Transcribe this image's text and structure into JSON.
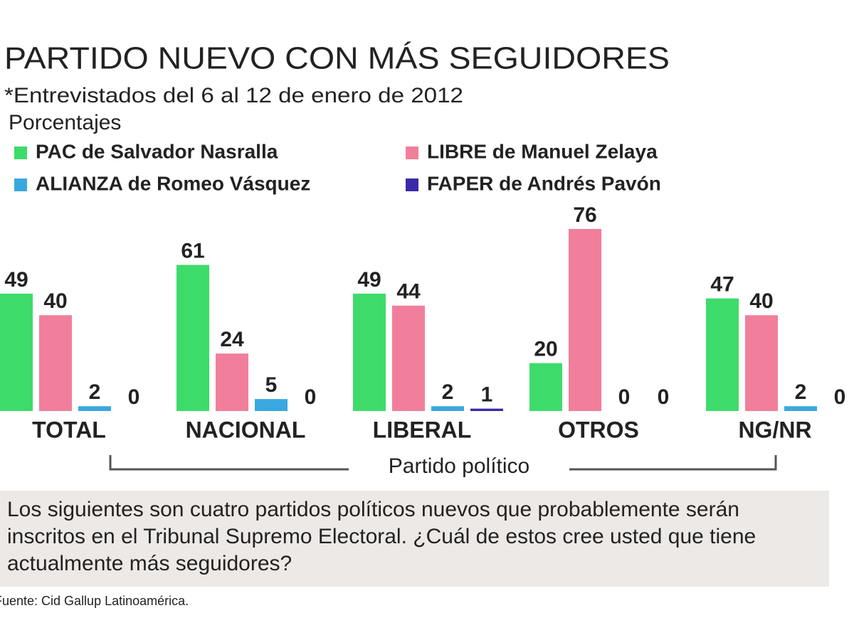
{
  "chart_data": {
    "type": "bar",
    "title": "PARTIDO NUEVO CON MÁS SEGUIDORES",
    "subtitle": "*Entrevistados del 6 al 12 de enero de 2012",
    "units": "Porcentajes",
    "x_label": "Partido político",
    "note": "Los siguientes son cuatro partidos políticos nuevos que probablemente serán inscritos en el Tribunal Supremo Electoral. ¿Cuál de estos cree usted que tiene actualmente más seguidores?",
    "source": "Fuente: Cid Gallup Latinoamérica.",
    "categories": [
      "TOTAL",
      "NACIONAL",
      "LIBERAL",
      "OTROS",
      "NG/NR"
    ],
    "series": [
      {
        "name": "PAC de Salvador Nasralla",
        "color": "#3ddc6a",
        "values": [
          49,
          61,
          49,
          20,
          47
        ]
      },
      {
        "name": "LIBRE de Manuel Zelaya",
        "color": "#f17f9b",
        "values": [
          40,
          24,
          44,
          76,
          40
        ]
      },
      {
        "name": "ALIANZA de Romeo Vásquez",
        "color": "#3aa8e0",
        "values": [
          2,
          5,
          2,
          0,
          2
        ]
      },
      {
        "name": "FAPER de Andrés Pavón",
        "color": "#3a2aa8",
        "values": [
          0,
          0,
          1,
          0,
          0
        ]
      }
    ]
  }
}
